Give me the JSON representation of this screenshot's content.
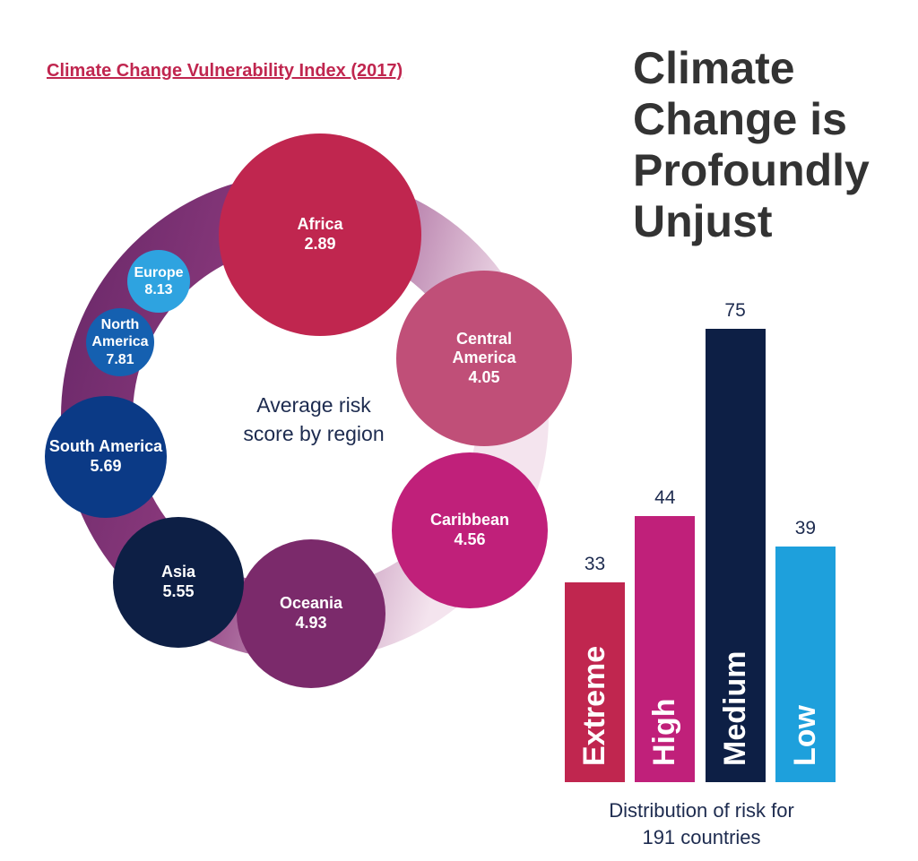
{
  "headline": "Climate Change is Profoundly Unjust",
  "chart_data": [
    {
      "type": "bubble",
      "title": "Climate Change Vulnerability Index (2017)",
      "center_label": "Average risk score by region",
      "categories": [
        "Africa",
        "Central America",
        "Caribbean",
        "Oceania",
        "Asia",
        "South America",
        "North America",
        "Europe"
      ],
      "values": [
        2.89,
        4.05,
        4.56,
        4.93,
        5.55,
        5.69,
        7.81,
        8.13
      ],
      "colors": [
        "#c0264f",
        "#c04f78",
        "#c0207a",
        "#7b2a6b",
        "#0d1f45",
        "#0b3a86",
        "#1560b0",
        "#2ea3e0"
      ]
    },
    {
      "type": "bar",
      "x_label": "Distribution of risk for 191 countries",
      "categories": [
        "Extreme",
        "High",
        "Medium",
        "Low"
      ],
      "values": [
        33,
        44,
        75,
        39
      ],
      "colors": [
        "#c0264f",
        "#c0207a",
        "#0d1f45",
        "#1ea0dc"
      ]
    }
  ]
}
